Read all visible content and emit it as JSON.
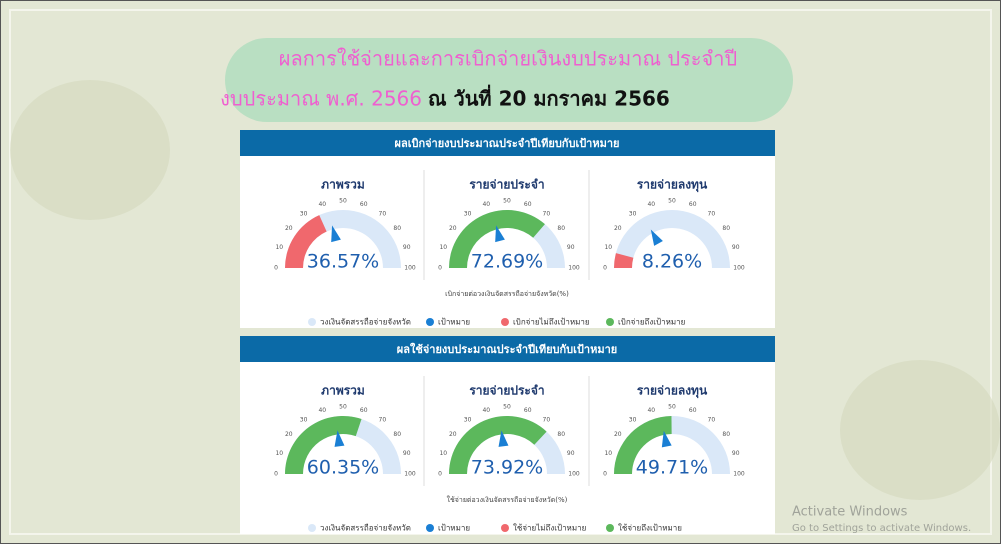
{
  "header": {
    "line1": "ผลการใช้จ่ายและการเบิกจ่ายเงินงบประมาณ ประจำปี",
    "line2a": "งบประมาณ พ.ศ. 2566",
    "line2b": "ณ วันที่ 20 มกราคม 2566"
  },
  "panels": [
    {
      "title": "ผลเบิกจ่ายงบประมาณประจำปีเทียบกับเป้าหมาย",
      "caption": "เบิกจ่ายต่อวงเงินจัดสรรถือจ่ายจังหวัด(%)",
      "legend": [
        {
          "name": "วงเงินจัดสรรถือจ่ายจังหวัด",
          "color": "#dae8f8"
        },
        {
          "name": "เป้าหมาย",
          "color": "#1a7fd4"
        },
        {
          "name": "เบิกจ่ายไม่ถึงเป้าหมาย",
          "color": "#f0686d"
        },
        {
          "name": "เบิกจ่ายถึงเป้าหมาย",
          "color": "#5cb85c"
        }
      ]
    },
    {
      "title": "ผลใช้จ่ายงบประมาณประจำปีเทียบกับเป้าหมาย",
      "caption": "ใช้จ่ายต่อวงเงินจัดสรรถือจ่ายจังหวัด(%)",
      "legend": [
        {
          "name": "วงเงินจัดสรรถือจ่ายจังหวัด",
          "color": "#dae8f8"
        },
        {
          "name": "เป้าหมาย",
          "color": "#1a7fd4"
        },
        {
          "name": "ใช้จ่ายไม่ถึงเป้าหมาย",
          "color": "#f0686d"
        },
        {
          "name": "ใช้จ่ายถึงเป้าหมาย",
          "color": "#5cb85c"
        }
      ]
    }
  ],
  "chart_data": [
    {
      "type": "gauge",
      "title": "ภาพรวม",
      "value": 36.57,
      "value_label": "36.57%",
      "target": 42,
      "color": "#f0686d",
      "track_color": "#dae8f8",
      "target_color": "#1a7fd4",
      "ylim": [
        0,
        100
      ],
      "yticks": [
        0,
        10,
        20,
        30,
        40,
        50,
        60,
        70,
        80,
        90,
        100
      ]
    },
    {
      "type": "gauge",
      "title": "รายจ่ายประจำ",
      "value": 72.69,
      "value_label": "72.69%",
      "target": 42,
      "color": "#5cb85c",
      "track_color": "#dae8f8",
      "target_color": "#1a7fd4",
      "ylim": [
        0,
        100
      ],
      "yticks": [
        0,
        10,
        20,
        30,
        40,
        50,
        60,
        70,
        80,
        90,
        100
      ]
    },
    {
      "type": "gauge",
      "title": "รายจ่ายลงทุน",
      "value": 8.26,
      "value_label": "8.26%",
      "target": 34,
      "color": "#f0686d",
      "track_color": "#dae8f8",
      "target_color": "#1a7fd4",
      "ylim": [
        0,
        100
      ],
      "yticks": [
        0,
        10,
        20,
        30,
        40,
        50,
        60,
        70,
        80,
        90,
        100
      ]
    },
    {
      "type": "gauge",
      "title": "ภาพรวม",
      "value": 60.35,
      "value_label": "60.35%",
      "target": 46,
      "color": "#5cb85c",
      "track_color": "#dae8f8",
      "target_color": "#1a7fd4",
      "ylim": [
        0,
        100
      ],
      "yticks": [
        0,
        10,
        20,
        30,
        40,
        50,
        60,
        70,
        80,
        90,
        100
      ]
    },
    {
      "type": "gauge",
      "title": "รายจ่ายประจำ",
      "value": 73.92,
      "value_label": "73.92%",
      "target": 46,
      "color": "#5cb85c",
      "track_color": "#dae8f8",
      "target_color": "#1a7fd4",
      "ylim": [
        0,
        100
      ],
      "yticks": [
        0,
        10,
        20,
        30,
        40,
        50,
        60,
        70,
        80,
        90,
        100
      ]
    },
    {
      "type": "gauge",
      "title": "รายจ่ายลงทุน",
      "value": 49.71,
      "value_label": "49.71%",
      "target": 44,
      "color": "#5cb85c",
      "track_color": "#dae8f8",
      "target_color": "#1a7fd4",
      "ylim": [
        0,
        100
      ],
      "yticks": [
        0,
        10,
        20,
        30,
        40,
        50,
        60,
        70,
        80,
        90,
        100
      ]
    }
  ],
  "watermark": {
    "line1": "Activate Windows",
    "line2": "Go to Settings to activate Windows."
  }
}
